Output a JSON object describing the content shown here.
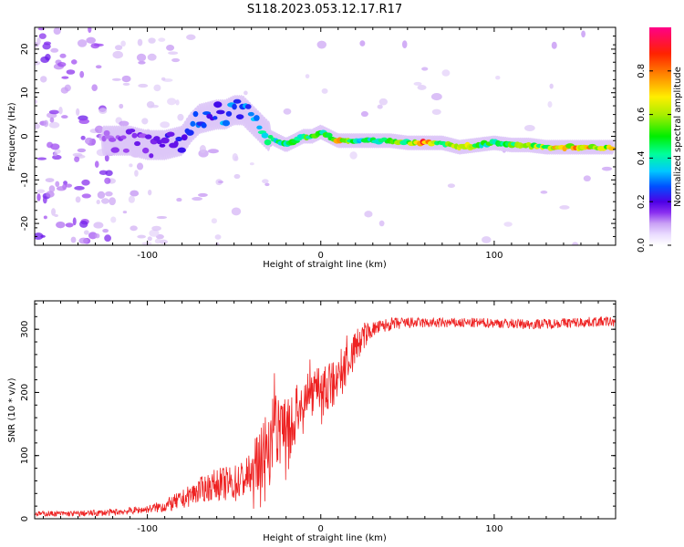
{
  "title": "S118.2023.053.12.17.R17",
  "chart_data": [
    {
      "type": "heatmap",
      "name": "spectrogram",
      "xlabel": "Height of straight line (km)",
      "ylabel": "Frequency (Hz)",
      "xlim": [
        -165,
        170
      ],
      "ylim": [
        -25,
        25
      ],
      "xticks": [
        -100,
        0,
        100
      ],
      "yticks": [
        -20,
        -10,
        0,
        10,
        20
      ],
      "colorbar": {
        "label": "Normalized spectral amplitude",
        "range": [
          0,
          1
        ],
        "ticks": [
          "0.0",
          "0.2",
          "0.4",
          "0.6",
          "0.8"
        ],
        "tick_values": [
          0,
          0.2,
          0.4,
          0.6,
          0.8
        ],
        "colors": [
          "#f4ecff",
          "#d9bff5",
          "#9a40f0",
          "#4d00e6",
          "#0044ff",
          "#00ccff",
          "#00ff99",
          "#00ee00",
          "#aaee00",
          "#ffee00",
          "#ff8800",
          "#ff2200",
          "#ff0088"
        ]
      },
      "ridge": {
        "x": [
          -125,
          -110,
          -100,
          -90,
          -80,
          -75,
          -70,
          -60,
          -55,
          -50,
          -45,
          -40,
          -35,
          -30,
          -25,
          -20,
          -15,
          -10,
          -5,
          0,
          5,
          10,
          20,
          30,
          40,
          50,
          60,
          70,
          80,
          90,
          100,
          110,
          120,
          130,
          140,
          150,
          160,
          168
        ],
        "freq": [
          -1,
          -1,
          -2,
          -2,
          -1,
          2,
          4,
          5,
          5,
          6,
          6,
          4,
          2,
          0,
          -1,
          -2,
          -1,
          0,
          0,
          1,
          0,
          -1,
          -1,
          -1,
          -1,
          -1.5,
          -1.5,
          -1.5,
          -2.5,
          -2,
          -1.5,
          -2,
          -2,
          -2.5,
          -2.5,
          -2.5,
          -2.5,
          -2.5
        ],
        "amplitude": [
          0.15,
          0.2,
          0.2,
          0.25,
          0.3,
          0.35,
          0.35,
          0.3,
          0.4,
          0.4,
          0.35,
          0.4,
          0.45,
          0.5,
          0.5,
          0.55,
          0.55,
          0.6,
          0.6,
          0.6,
          0.6,
          0.85,
          0.5,
          0.55,
          0.6,
          0.65,
          0.9,
          0.6,
          0.85,
          0.6,
          0.55,
          0.6,
          0.65,
          0.7,
          0.8,
          0.85,
          0.8,
          0.75
        ]
      }
    },
    {
      "type": "line",
      "name": "snr",
      "xlabel": "Height of straight line (km)",
      "ylabel": "SNR (10 * v/v)",
      "xlim": [
        -165,
        170
      ],
      "ylim": [
        0,
        345
      ],
      "xticks": [
        -100,
        0,
        100
      ],
      "yticks": [
        0,
        100,
        200,
        300
      ],
      "color": "#ee2222",
      "envelope": {
        "x": [
          -165,
          -140,
          -120,
          -100,
          -90,
          -80,
          -70,
          -60,
          -50,
          -40,
          -35,
          -30,
          -25,
          -20,
          -15,
          -10,
          -5,
          0,
          5,
          10,
          15,
          20,
          25,
          30,
          40,
          50,
          60,
          80,
          100,
          120,
          140,
          160,
          170
        ],
        "y": [
          8,
          8,
          10,
          15,
          20,
          30,
          45,
          55,
          55,
          70,
          100,
          120,
          140,
          150,
          160,
          180,
          195,
          200,
          210,
          225,
          245,
          270,
          290,
          300,
          308,
          310,
          310,
          310,
          310,
          308,
          310,
          312,
          312
        ]
      },
      "spread": {
        "x": [
          -165,
          -100,
          -80,
          -60,
          -40,
          -30,
          -20,
          -10,
          0,
          10,
          20,
          30,
          60,
          170
        ],
        "y": [
          4,
          6,
          15,
          25,
          35,
          70,
          55,
          45,
          40,
          40,
          30,
          12,
          8,
          8
        ]
      }
    }
  ]
}
